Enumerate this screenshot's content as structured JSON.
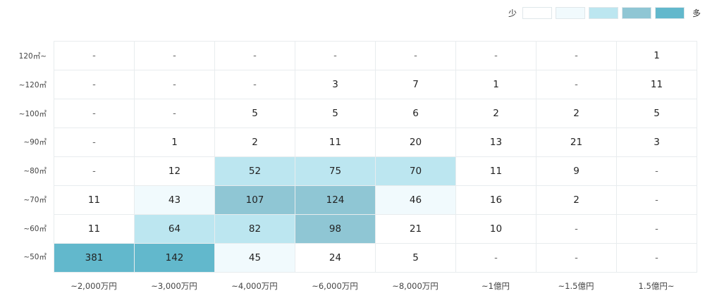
{
  "legend": {
    "low_label": "少",
    "high_label": "多",
    "swatches": [
      "#ffffff",
      "#f1fafd",
      "#bce6f0",
      "#8fc6d4",
      "#62b8cc"
    ]
  },
  "chart_data": {
    "type": "heatmap",
    "rows": [
      "120㎡~",
      "~120㎡",
      "~100㎡",
      "~90㎡",
      "~80㎡",
      "~70㎡",
      "~60㎡",
      "~50㎡"
    ],
    "columns": [
      "~2,000万円",
      "~3,000万円",
      "~4,000万円",
      "~6,000万円",
      "~8,000万円",
      "~1億円",
      "~1.5億円",
      "1.5億円~"
    ],
    "values": [
      [
        "-",
        "-",
        "-",
        "-",
        "-",
        "-",
        "-",
        "1"
      ],
      [
        "-",
        "-",
        "-",
        "3",
        "7",
        "1",
        "-",
        "11"
      ],
      [
        "-",
        "-",
        "5",
        "5",
        "6",
        "2",
        "2",
        "5"
      ],
      [
        "-",
        "1",
        "2",
        "11",
        "20",
        "13",
        "21",
        "3"
      ],
      [
        "-",
        "12",
        "52",
        "75",
        "70",
        "11",
        "9",
        "-"
      ],
      [
        "11",
        "43",
        "107",
        "124",
        "46",
        "16",
        "2",
        "-"
      ],
      [
        "11",
        "64",
        "82",
        "98",
        "21",
        "10",
        "-",
        "-"
      ],
      [
        "381",
        "142",
        "45",
        "24",
        "5",
        "-",
        "-",
        "-"
      ]
    ],
    "color_scale": [
      "#ffffff",
      "#f1fafd",
      "#bce6f0",
      "#8fc6d4",
      "#62b8cc"
    ],
    "color_bins": [
      0,
      40,
      50,
      90,
      130
    ]
  }
}
